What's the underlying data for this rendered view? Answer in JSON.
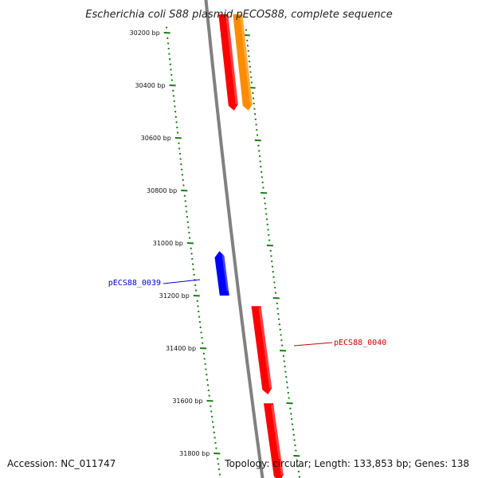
{
  "title": "Escherichia coli S88 plasmid pECOS88, complete sequence",
  "footer": {
    "accession": "Accession: NC_011747",
    "summary": "Topology: circular; Length: 133,853 bp; Genes: 138"
  },
  "ticks": [
    {
      "label": "30200 bp",
      "pos": 30200
    },
    {
      "label": "30400 bp",
      "pos": 30400
    },
    {
      "label": "30600 bp",
      "pos": 30600
    },
    {
      "label": "30800 bp",
      "pos": 30800
    },
    {
      "label": "31000 bp",
      "pos": 31000
    },
    {
      "label": "31200 bp",
      "pos": 31200
    },
    {
      "label": "31400 bp",
      "pos": 31400
    },
    {
      "label": "31600 bp",
      "pos": 31600
    },
    {
      "label": "31800 bp",
      "pos": 31800
    }
  ],
  "features": [
    {
      "track": "forward",
      "start": 30130,
      "end": 30490,
      "color": "#ff0000",
      "strand": "+"
    },
    {
      "track": "forward-outer",
      "start": 30130,
      "end": 30490,
      "color": "#ff8c00",
      "strand": "+"
    },
    {
      "track": "reverse",
      "start": 31040,
      "end": 31200,
      "color": "#0000ff",
      "strand": "-",
      "label": "pECS88_0039"
    },
    {
      "track": "forward",
      "start": 31240,
      "end": 31570,
      "color": "#ff0000",
      "strand": "+",
      "label": "pECS88_0040"
    },
    {
      "track": "forward",
      "start": 31610,
      "end": 31900,
      "color": "#ff0000",
      "strand": "+"
    }
  ],
  "colors": {
    "backbone": "#808080",
    "ticks": "#1a7a1a",
    "forward": "#ff0000",
    "reverse": "#0000ff",
    "other": "#ff8c00",
    "label_reverse": "#0000cc",
    "label_forward": "#cc0000"
  }
}
